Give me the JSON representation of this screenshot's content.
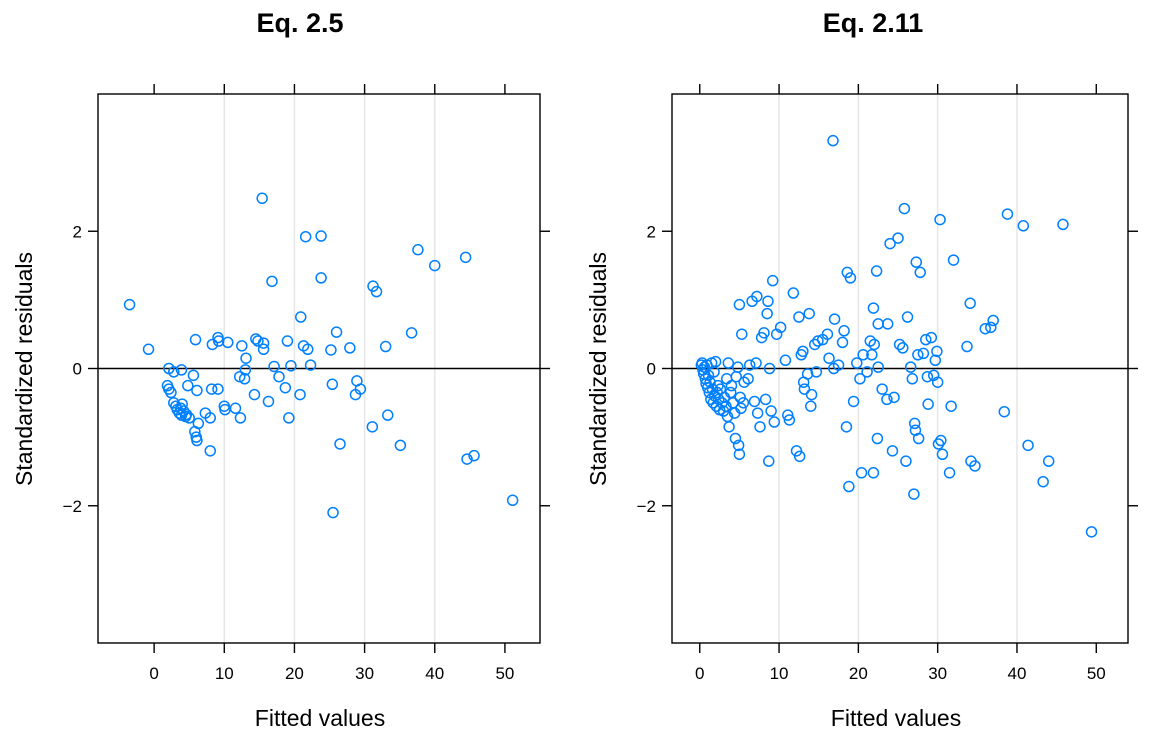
{
  "colors": {
    "point": "#0080ff",
    "grid": "#e6e6e6",
    "axis": "#000000"
  },
  "chart_data": [
    {
      "type": "scatter",
      "title": "Eq. 2.5",
      "xlabel": "Fitted values",
      "ylabel": "Standardized residuals",
      "xlim": [
        -8,
        55
      ],
      "ylim": [
        -4,
        4
      ],
      "xticks": [
        0,
        10,
        20,
        30,
        40,
        50
      ],
      "yticks": [
        -2,
        0,
        2
      ],
      "xtick_labels": [
        "0",
        "10",
        "20",
        "30",
        "40",
        "50"
      ],
      "ytick_labels": [
        "−2",
        "0",
        "2"
      ],
      "xgrid": [
        10,
        20,
        30,
        40
      ],
      "reference_line_y": 0,
      "points": [
        [
          -3.5,
          0.93
        ],
        [
          -0.8,
          0.28
        ],
        [
          2.1,
          0.0
        ],
        [
          2.8,
          -0.05
        ],
        [
          1.9,
          -0.25
        ],
        [
          2.1,
          -0.3
        ],
        [
          2.4,
          -0.35
        ],
        [
          2.8,
          -0.5
        ],
        [
          3.1,
          -0.55
        ],
        [
          3.3,
          -0.6
        ],
        [
          3.6,
          -0.65
        ],
        [
          3.8,
          -0.58
        ],
        [
          4.0,
          -0.52
        ],
        [
          3.9,
          -0.68
        ],
        [
          4.2,
          -0.62
        ],
        [
          4.5,
          -0.7
        ],
        [
          4.6,
          -0.67
        ],
        [
          5.0,
          -0.72
        ],
        [
          4.8,
          -0.25
        ],
        [
          3.9,
          -0.02
        ],
        [
          5.6,
          -0.1
        ],
        [
          5.8,
          -0.92
        ],
        [
          6.0,
          -1.0
        ],
        [
          6.1,
          -1.05
        ],
        [
          6.3,
          -0.8
        ],
        [
          5.9,
          0.42
        ],
        [
          6.1,
          -0.32
        ],
        [
          7.3,
          -0.65
        ],
        [
          8.0,
          -0.72
        ],
        [
          8.0,
          -1.2
        ],
        [
          8.2,
          -0.3
        ],
        [
          8.3,
          0.35
        ],
        [
          9.1,
          -0.3
        ],
        [
          9.1,
          0.45
        ],
        [
          9.2,
          0.4
        ],
        [
          10.0,
          -0.55
        ],
        [
          10.1,
          -0.6
        ],
        [
          10.5,
          0.38
        ],
        [
          11.6,
          -0.58
        ],
        [
          12.2,
          -0.12
        ],
        [
          12.5,
          0.33
        ],
        [
          12.3,
          -0.72
        ],
        [
          12.9,
          -0.15
        ],
        [
          13.1,
          0.15
        ],
        [
          13.0,
          -0.02
        ],
        [
          14.3,
          -0.38
        ],
        [
          14.5,
          0.43
        ],
        [
          14.8,
          0.4
        ],
        [
          15.4,
          2.48
        ],
        [
          15.6,
          0.28
        ],
        [
          15.6,
          0.37
        ],
        [
          16.3,
          -0.48
        ],
        [
          16.8,
          1.27
        ],
        [
          17.1,
          0.03
        ],
        [
          17.8,
          -0.12
        ],
        [
          18.7,
          -0.28
        ],
        [
          19.0,
          0.4
        ],
        [
          19.2,
          -0.72
        ],
        [
          19.5,
          0.04
        ],
        [
          20.8,
          -0.38
        ],
        [
          20.9,
          0.75
        ],
        [
          21.3,
          0.33
        ],
        [
          21.6,
          1.92
        ],
        [
          21.9,
          0.28
        ],
        [
          22.3,
          0.05
        ],
        [
          23.8,
          1.93
        ],
        [
          23.8,
          1.32
        ],
        [
          25.2,
          0.27
        ],
        [
          25.4,
          -0.23
        ],
        [
          25.5,
          -2.1
        ],
        [
          26.0,
          0.53
        ],
        [
          26.5,
          -1.1
        ],
        [
          27.9,
          0.3
        ],
        [
          28.7,
          -0.38
        ],
        [
          28.9,
          -0.18
        ],
        [
          29.4,
          -0.3
        ],
        [
          31.1,
          -0.85
        ],
        [
          31.2,
          1.2
        ],
        [
          31.7,
          1.12
        ],
        [
          33.0,
          0.32
        ],
        [
          33.3,
          -0.68
        ],
        [
          35.1,
          -1.12
        ],
        [
          36.7,
          0.52
        ],
        [
          37.6,
          1.73
        ],
        [
          40.0,
          1.5
        ],
        [
          44.4,
          1.62
        ],
        [
          44.6,
          -1.32
        ],
        [
          45.6,
          -1.27
        ],
        [
          51.1,
          -1.92
        ]
      ]
    },
    {
      "type": "scatter",
      "title": "Eq. 2.11",
      "xlabel": "Fitted values",
      "ylabel": "Standardized residuals",
      "xlim": [
        -3.5,
        54
      ],
      "ylim": [
        -4,
        4
      ],
      "xticks": [
        0,
        10,
        20,
        30,
        40,
        50
      ],
      "yticks": [
        -2,
        0,
        2
      ],
      "xtick_labels": [
        "0",
        "10",
        "20",
        "30",
        "40",
        "50"
      ],
      "ytick_labels": [
        "−2",
        "0",
        "2"
      ],
      "xgrid": [
        10,
        20,
        30,
        40
      ],
      "reference_line_y": 0,
      "points": [
        [
          0.2,
          0.05
        ],
        [
          0.3,
          0.08
        ],
        [
          0.4,
          -0.02
        ],
        [
          0.5,
          -0.08
        ],
        [
          0.6,
          0.02
        ],
        [
          0.7,
          -0.15
        ],
        [
          0.8,
          -0.22
        ],
        [
          0.9,
          0.05
        ],
        [
          1.0,
          -0.28
        ],
        [
          1.1,
          -0.1
        ],
        [
          1.2,
          -0.35
        ],
        [
          1.3,
          -0.2
        ],
        [
          1.4,
          -0.45
        ],
        [
          1.5,
          0.08
        ],
        [
          1.6,
          -0.3
        ],
        [
          1.7,
          -0.5
        ],
        [
          1.8,
          -0.05
        ],
        [
          1.9,
          -0.4
        ],
        [
          2.0,
          0.1
        ],
        [
          2.1,
          -0.55
        ],
        [
          2.2,
          -0.35
        ],
        [
          2.3,
          -0.25
        ],
        [
          2.4,
          -0.45
        ],
        [
          2.5,
          -0.6
        ],
        [
          2.6,
          -0.3
        ],
        [
          2.8,
          -0.5
        ],
        [
          3.0,
          -0.62
        ],
        [
          3.1,
          -0.42
        ],
        [
          3.3,
          -0.55
        ],
        [
          3.4,
          -0.15
        ],
        [
          3.5,
          -0.7
        ],
        [
          3.6,
          0.08
        ],
        [
          3.7,
          -0.85
        ],
        [
          3.9,
          -0.35
        ],
        [
          4.0,
          -0.25
        ],
        [
          4.2,
          -0.5
        ],
        [
          4.4,
          -0.65
        ],
        [
          4.5,
          -1.02
        ],
        [
          4.6,
          -0.12
        ],
        [
          4.8,
          0.02
        ],
        [
          4.9,
          -1.12
        ],
        [
          5.0,
          -1.25
        ],
        [
          5.1,
          -0.42
        ],
        [
          5.2,
          -0.58
        ],
        [
          5.3,
          0.5
        ],
        [
          5.5,
          -0.5
        ],
        [
          5.6,
          -0.2
        ],
        [
          5.0,
          0.93
        ],
        [
          6.1,
          -0.15
        ],
        [
          6.3,
          0.05
        ],
        [
          6.6,
          0.98
        ],
        [
          6.9,
          -0.48
        ],
        [
          7.1,
          0.08
        ],
        [
          7.2,
          1.05
        ],
        [
          7.3,
          -0.65
        ],
        [
          7.6,
          -0.85
        ],
        [
          7.8,
          0.45
        ],
        [
          8.1,
          0.52
        ],
        [
          8.3,
          -0.45
        ],
        [
          8.5,
          0.8
        ],
        [
          8.6,
          0.98
        ],
        [
          8.7,
          -1.35
        ],
        [
          8.8,
          0.0
        ],
        [
          9.0,
          -0.62
        ],
        [
          9.2,
          1.28
        ],
        [
          9.4,
          -0.78
        ],
        [
          9.7,
          0.5
        ],
        [
          10.2,
          0.6
        ],
        [
          10.8,
          0.12
        ],
        [
          11.1,
          -0.68
        ],
        [
          11.3,
          -0.75
        ],
        [
          11.8,
          1.1
        ],
        [
          12.2,
          -1.2
        ],
        [
          12.5,
          0.75
        ],
        [
          12.6,
          -1.28
        ],
        [
          12.8,
          0.2
        ],
        [
          13.0,
          0.25
        ],
        [
          13.1,
          -0.2
        ],
        [
          13.2,
          -0.3
        ],
        [
          13.6,
          -0.08
        ],
        [
          13.8,
          0.8
        ],
        [
          14.0,
          -0.55
        ],
        [
          14.1,
          -0.38
        ],
        [
          14.5,
          0.35
        ],
        [
          14.7,
          -0.05
        ],
        [
          14.9,
          0.4
        ],
        [
          15.5,
          0.42
        ],
        [
          16.1,
          0.5
        ],
        [
          16.3,
          0.15
        ],
        [
          16.8,
          3.32
        ],
        [
          16.9,
          0.0
        ],
        [
          17.0,
          0.72
        ],
        [
          17.5,
          0.05
        ],
        [
          18.0,
          0.38
        ],
        [
          18.2,
          0.55
        ],
        [
          18.5,
          -0.85
        ],
        [
          18.6,
          1.4
        ],
        [
          18.8,
          -1.72
        ],
        [
          19.0,
          1.32
        ],
        [
          19.4,
          -0.48
        ],
        [
          19.8,
          0.08
        ],
        [
          20.2,
          -0.15
        ],
        [
          20.4,
          -1.52
        ],
        [
          20.6,
          0.2
        ],
        [
          21.1,
          -0.05
        ],
        [
          21.5,
          0.4
        ],
        [
          21.7,
          0.2
        ],
        [
          21.9,
          -1.52
        ],
        [
          21.9,
          0.88
        ],
        [
          22.0,
          0.35
        ],
        [
          22.3,
          1.42
        ],
        [
          22.4,
          -1.02
        ],
        [
          22.5,
          0.65
        ],
        [
          22.5,
          0.02
        ],
        [
          23.0,
          -0.3
        ],
        [
          23.6,
          -0.45
        ],
        [
          23.7,
          0.65
        ],
        [
          24.0,
          1.82
        ],
        [
          24.3,
          -1.2
        ],
        [
          24.5,
          -0.42
        ],
        [
          25.0,
          1.9
        ],
        [
          25.2,
          0.35
        ],
        [
          25.6,
          0.3
        ],
        [
          25.8,
          2.33
        ],
        [
          26.0,
          -1.35
        ],
        [
          26.2,
          0.75
        ],
        [
          26.6,
          0.02
        ],
        [
          26.8,
          -0.15
        ],
        [
          27.0,
          -1.83
        ],
        [
          27.1,
          -0.8
        ],
        [
          27.2,
          -0.9
        ],
        [
          27.3,
          1.55
        ],
        [
          27.5,
          0.2
        ],
        [
          27.6,
          -1.02
        ],
        [
          27.8,
          1.4
        ],
        [
          28.2,
          0.22
        ],
        [
          28.5,
          0.42
        ],
        [
          28.7,
          -0.12
        ],
        [
          28.8,
          -0.52
        ],
        [
          29.2,
          0.45
        ],
        [
          29.5,
          -0.1
        ],
        [
          29.7,
          0.12
        ],
        [
          29.9,
          0.25
        ],
        [
          30.0,
          -0.2
        ],
        [
          30.1,
          -1.1
        ],
        [
          30.3,
          2.17
        ],
        [
          30.4,
          -1.05
        ],
        [
          30.6,
          -1.25
        ],
        [
          31.5,
          -1.52
        ],
        [
          31.7,
          -0.55
        ],
        [
          32.0,
          1.58
        ],
        [
          33.7,
          0.32
        ],
        [
          34.1,
          0.95
        ],
        [
          34.2,
          -1.35
        ],
        [
          34.7,
          -1.42
        ],
        [
          36.0,
          0.58
        ],
        [
          36.7,
          0.6
        ],
        [
          37.0,
          0.7
        ],
        [
          38.4,
          -0.63
        ],
        [
          38.8,
          2.25
        ],
        [
          40.8,
          2.08
        ],
        [
          41.4,
          -1.12
        ],
        [
          43.3,
          -1.65
        ],
        [
          44.0,
          -1.35
        ],
        [
          45.8,
          2.1
        ],
        [
          49.4,
          -2.38
        ]
      ]
    }
  ]
}
